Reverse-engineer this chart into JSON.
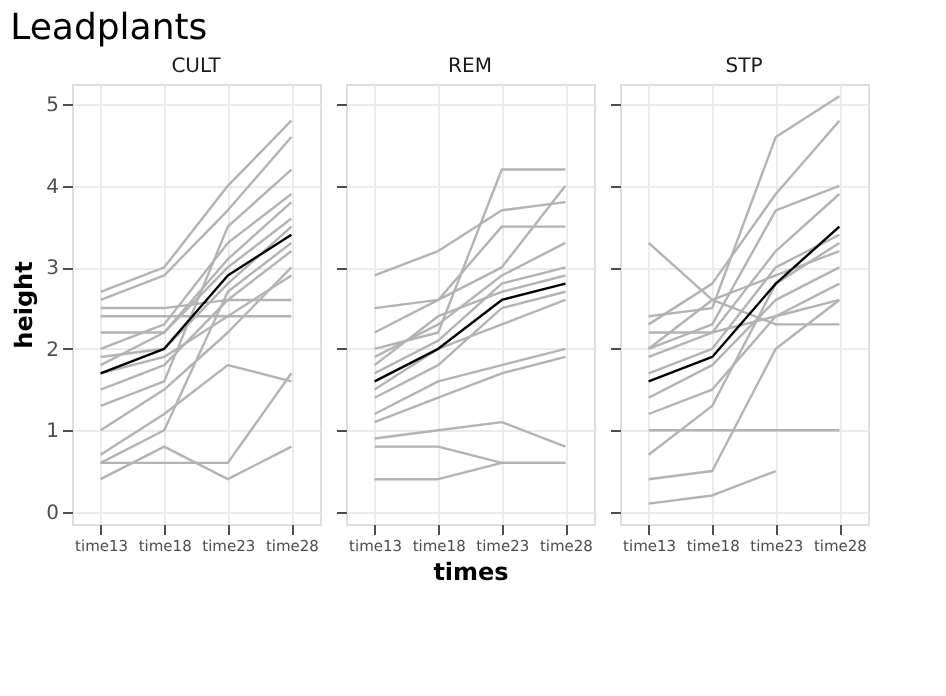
{
  "chart_data": [
    {
      "type": "line",
      "title": "CULT",
      "annotations": [
        "Leadplants"
      ],
      "ylabel": "height",
      "categories": [
        "time13",
        "time18",
        "time23",
        "time28"
      ],
      "ylim": [
        -0.15,
        5.25
      ],
      "yticks": [
        0,
        1,
        2,
        3,
        4,
        5
      ],
      "grid": true,
      "legend": false,
      "series": [
        {
          "color": "#b3b3b3",
          "values": [
            2.7,
            3.0,
            4.0,
            4.8
          ]
        },
        {
          "color": "#b3b3b3",
          "values": [
            2.6,
            2.9,
            3.7,
            4.6
          ]
        },
        {
          "color": "#b3b3b3",
          "values": [
            2.5,
            2.5,
            2.6,
            2.6
          ]
        },
        {
          "color": "#b3b3b3",
          "values": [
            2.4,
            2.4,
            2.4,
            2.4
          ]
        },
        {
          "color": "#b3b3b3",
          "values": [
            2.0,
            2.3,
            3.3,
            3.9
          ]
        },
        {
          "color": "#b3b3b3",
          "values": [
            1.9,
            2.0,
            2.8,
            3.5
          ]
        },
        {
          "color": "#b3b3b3",
          "values": [
            1.8,
            2.2,
            3.0,
            3.6
          ]
        },
        {
          "color": "#b3b3b3",
          "values": [
            1.5,
            1.8,
            2.6,
            3.2
          ]
        },
        {
          "color": "#b3b3b3",
          "values": [
            1.3,
            1.6,
            3.5,
            4.2
          ]
        },
        {
          "color": "#b3b3b3",
          "values": [
            1.0,
            1.5,
            2.2,
            3.0
          ]
        },
        {
          "color": "#b3b3b3",
          "values": [
            0.7,
            1.2,
            1.8,
            1.6
          ]
        },
        {
          "color": "#b3b3b3",
          "values": [
            0.6,
            0.6,
            0.6,
            1.7
          ]
        },
        {
          "color": "#b3b3b3",
          "values": [
            0.4,
            0.8,
            0.4,
            0.8
          ]
        },
        {
          "color": "#b3b3b3",
          "values": [
            0.6,
            1.0,
            2.7,
            3.3
          ]
        },
        {
          "color": "#b3b3b3",
          "values": [
            2.2,
            2.2,
            3.1,
            3.8
          ]
        },
        {
          "color": "#b3b3b3",
          "values": [
            1.7,
            1.9,
            2.4,
            2.9
          ]
        },
        {
          "color": "#000000",
          "values": [
            1.7,
            2.0,
            2.9,
            3.4
          ]
        }
      ]
    },
    {
      "type": "line",
      "title": "REM",
      "xlabel": "times",
      "categories": [
        "time13",
        "time18",
        "time23",
        "time28"
      ],
      "ylim": [
        -0.15,
        5.25
      ],
      "yticks": [
        0,
        1,
        2,
        3,
        4,
        5
      ],
      "grid": true,
      "legend": false,
      "tick_labels": "x",
      "series": [
        {
          "color": "#b3b3b3",
          "values": [
            2.9,
            3.2,
            3.7,
            3.8
          ]
        },
        {
          "color": "#b3b3b3",
          "values": [
            2.0,
            2.2,
            4.2,
            4.2
          ]
        },
        {
          "color": "#b3b3b3",
          "values": [
            2.5,
            2.6,
            3.0,
            4.0
          ]
        },
        {
          "color": "#b3b3b3",
          "values": [
            2.2,
            2.6,
            3.5,
            3.5
          ]
        },
        {
          "color": "#b3b3b3",
          "values": [
            1.9,
            2.3,
            2.9,
            3.3
          ]
        },
        {
          "color": "#b3b3b3",
          "values": [
            1.7,
            2.1,
            2.8,
            3.0
          ]
        },
        {
          "color": "#b3b3b3",
          "values": [
            1.4,
            1.8,
            2.5,
            2.7
          ]
        },
        {
          "color": "#b3b3b3",
          "values": [
            1.2,
            1.6,
            1.8,
            2.0
          ]
        },
        {
          "color": "#b3b3b3",
          "values": [
            1.1,
            1.4,
            1.7,
            1.9
          ]
        },
        {
          "color": "#b3b3b3",
          "values": [
            0.9,
            1.0,
            1.1,
            0.8
          ]
        },
        {
          "color": "#b3b3b3",
          "values": [
            0.8,
            0.8,
            0.6,
            0.6
          ]
        },
        {
          "color": "#b3b3b3",
          "values": [
            0.4,
            0.4,
            0.6,
            0.6
          ]
        },
        {
          "color": "#b3b3b3",
          "values": [
            1.5,
            2.0,
            2.3,
            2.6
          ]
        },
        {
          "color": "#b3b3b3",
          "values": [
            1.8,
            2.4,
            2.7,
            2.9
          ]
        },
        {
          "color": "#000000",
          "values": [
            1.6,
            2.0,
            2.6,
            2.8
          ]
        }
      ]
    },
    {
      "type": "line",
      "title": "STP",
      "categories": [
        "time13",
        "time18",
        "time23",
        "time28"
      ],
      "ylim": [
        -0.15,
        5.25
      ],
      "yticks": [
        0,
        1,
        2,
        3,
        4,
        5
      ],
      "grid": true,
      "legend": false,
      "tick_labels": "x",
      "series": [
        {
          "color": "#b3b3b3",
          "values": [
            2.4,
            2.5,
            4.6,
            5.1
          ]
        },
        {
          "color": "#b3b3b3",
          "values": [
            3.3,
            2.6,
            2.9,
            3.2
          ]
        },
        {
          "color": "#b3b3b3",
          "values": [
            2.3,
            2.8,
            3.9,
            4.8
          ]
        },
        {
          "color": "#b3b3b3",
          "values": [
            2.0,
            2.3,
            3.7,
            4.0
          ]
        },
        {
          "color": "#b3b3b3",
          "values": [
            1.9,
            2.2,
            3.2,
            3.9
          ]
        },
        {
          "color": "#b3b3b3",
          "values": [
            1.7,
            2.0,
            3.0,
            3.4
          ]
        },
        {
          "color": "#b3b3b3",
          "values": [
            1.4,
            1.8,
            2.6,
            3.0
          ]
        },
        {
          "color": "#b3b3b3",
          "values": [
            1.2,
            1.5,
            2.4,
            2.8
          ]
        },
        {
          "color": "#b3b3b3",
          "values": [
            1.0,
            1.0,
            1.0,
            1.0
          ]
        },
        {
          "color": "#b3b3b3",
          "values": [
            0.7,
            1.3,
            2.8,
            3.3
          ]
        },
        {
          "color": "#b3b3b3",
          "values": [
            0.4,
            0.5,
            2.0,
            2.6
          ]
        },
        {
          "color": "#b3b3b3",
          "values": [
            0.1,
            0.2,
            0.5,
            null
          ]
        },
        {
          "color": "#b3b3b3",
          "values": [
            2.0,
            2.6,
            2.3,
            2.3
          ]
        },
        {
          "color": "#b3b3b3",
          "values": [
            2.2,
            2.2,
            2.4,
            2.6
          ]
        },
        {
          "color": "#000000",
          "values": [
            1.6,
            1.9,
            2.8,
            3.5
          ]
        }
      ]
    }
  ]
}
